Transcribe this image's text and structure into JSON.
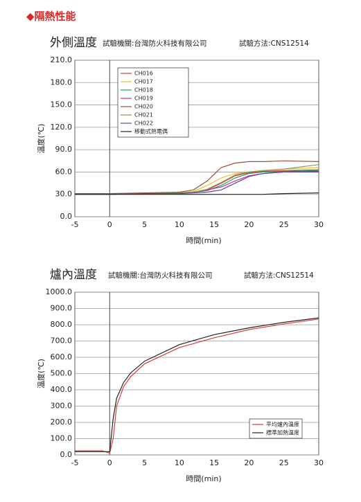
{
  "header": "◆隔熱性能",
  "chart_data": [
    {
      "type": "line",
      "title": "外側溫度",
      "subtitle": "試驗機關:台灣防火科技有限公司",
      "note": "試驗方法:CNS12514",
      "x_label": "時間(min)",
      "y_label": "溫度(℃)",
      "x": [
        -5,
        0,
        5,
        10,
        12,
        14,
        16,
        18,
        20,
        22,
        25,
        30
      ],
      "xlim": [
        -5,
        30
      ],
      "xticks": [
        -5,
        0,
        5,
        10,
        15,
        20,
        25,
        30
      ],
      "ylim": [
        0,
        210
      ],
      "yticks": [
        {
          "value": 0,
          "label": "0.0"
        },
        {
          "value": 30,
          "label": "30.0"
        },
        {
          "value": 60,
          "label": "60.0"
        },
        {
          "value": 90,
          "label": "90.0"
        },
        {
          "value": 120,
          "label": "120.0"
        },
        {
          "value": 150,
          "label": "150.0"
        },
        {
          "value": 180,
          "label": "180.0"
        },
        {
          "value": 210,
          "label": "210.0"
        }
      ],
      "grid": true,
      "legend": "upper-left",
      "series": [
        {
          "name": "CH016",
          "color": "#d83a3a",
          "values": [
            30,
            30,
            31,
            32,
            33,
            36,
            45,
            55,
            59,
            61,
            62,
            63
          ]
        },
        {
          "name": "CH017",
          "color": "#e8c030",
          "values": [
            30,
            30,
            31,
            32,
            34,
            42,
            52,
            58,
            60,
            62,
            64,
            66
          ]
        },
        {
          "name": "CH018",
          "color": "#2a9a5a",
          "values": [
            31,
            31,
            31,
            32,
            33,
            35,
            42,
            52,
            58,
            60,
            61,
            62
          ]
        },
        {
          "name": "CH019",
          "color": "#c03090",
          "values": [
            31,
            31,
            31,
            32,
            33,
            36,
            40,
            48,
            55,
            58,
            60,
            61
          ]
        },
        {
          "name": "CH020",
          "color": "#9a5030",
          "values": [
            31,
            31,
            32,
            33,
            36,
            48,
            66,
            72,
            74,
            74,
            75,
            74
          ]
        },
        {
          "name": "CH021",
          "color": "#8a9a60",
          "values": [
            30,
            30,
            31,
            32,
            33,
            37,
            46,
            56,
            60,
            62,
            64,
            70
          ]
        },
        {
          "name": "CH022",
          "color": "#6040a8",
          "values": [
            30,
            30,
            31,
            31,
            32,
            33,
            36,
            45,
            54,
            58,
            60,
            60
          ]
        },
        {
          "name": "移動式熱電偶",
          "color": "#222222",
          "values": [
            30,
            30,
            30,
            30,
            30,
            30,
            30,
            30,
            30,
            30,
            31,
            32
          ]
        }
      ]
    },
    {
      "type": "line",
      "title": "爐內溫度",
      "subtitle": "試驗機關:台灣防火科技有限公司",
      "note": "試驗方法:CNS12514",
      "x_label": "時間(min)",
      "y_label": "溫度(℃)",
      "x": [
        -5,
        -1,
        0,
        0.5,
        1,
        2,
        3,
        5,
        10,
        15,
        20,
        25,
        30
      ],
      "xlim": [
        -5,
        30
      ],
      "xticks": [
        -5,
        0,
        5,
        10,
        15,
        20,
        25,
        30
      ],
      "ylim": [
        0,
        1000
      ],
      "yticks": [
        {
          "value": 0,
          "label": "0.0"
        },
        {
          "value": 100,
          "label": "100.0"
        },
        {
          "value": 200,
          "label": "200.0"
        },
        {
          "value": 300,
          "label": "300.0"
        },
        {
          "value": 400,
          "label": "400.0"
        },
        {
          "value": 500,
          "label": "500.0"
        },
        {
          "value": 600,
          "label": "600.0"
        },
        {
          "value": 700,
          "label": "700.0"
        },
        {
          "value": 800,
          "label": "800.0"
        },
        {
          "value": 900,
          "label": "900.0"
        },
        {
          "value": 1000,
          "label": "1000.0"
        }
      ],
      "grid": true,
      "legend": "lower-right",
      "series": [
        {
          "name": "平均爐內溫度",
          "color": "#d83a3a",
          "values": [
            25,
            25,
            10,
            100,
            300,
            420,
            480,
            560,
            660,
            720,
            770,
            805,
            835
          ]
        },
        {
          "name": "標準加熱溫度",
          "color": "#222222",
          "values": [
            20,
            20,
            20,
            223,
            349,
            445,
            504,
            576,
            678,
            739,
            781,
            815,
            842
          ]
        }
      ]
    }
  ]
}
